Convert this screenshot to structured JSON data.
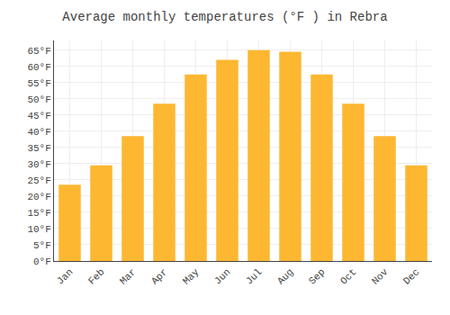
{
  "chart_data": {
    "type": "bar",
    "title": "Average monthly temperatures (°F ) in Rebra",
    "categories": [
      "Jan",
      "Feb",
      "Mar",
      "Apr",
      "May",
      "Jun",
      "Jul",
      "Aug",
      "Sep",
      "Oct",
      "Nov",
      "Dec"
    ],
    "values": [
      23.5,
      29.5,
      38.5,
      48.5,
      57.5,
      62.0,
      65.0,
      64.5,
      57.5,
      48.5,
      38.5,
      29.5
    ],
    "color": "#FDB731",
    "ylim": [
      0,
      68
    ],
    "yticks": [
      {
        "value": 0,
        "label": "0°F"
      },
      {
        "value": 5,
        "label": "5°F"
      },
      {
        "value": 10,
        "label": "10°F"
      },
      {
        "value": 15,
        "label": "15°F"
      },
      {
        "value": 20,
        "label": "20°F"
      },
      {
        "value": 25,
        "label": "25°F"
      },
      {
        "value": 30,
        "label": "30°F"
      },
      {
        "value": 35,
        "label": "35°F"
      },
      {
        "value": 40,
        "label": "40°F"
      },
      {
        "value": 45,
        "label": "45°F"
      },
      {
        "value": 50,
        "label": "50°F"
      },
      {
        "value": 55,
        "label": "55°F"
      },
      {
        "value": 60,
        "label": "60°F"
      },
      {
        "value": 65,
        "label": "65°F"
      }
    ],
    "grid": true
  }
}
